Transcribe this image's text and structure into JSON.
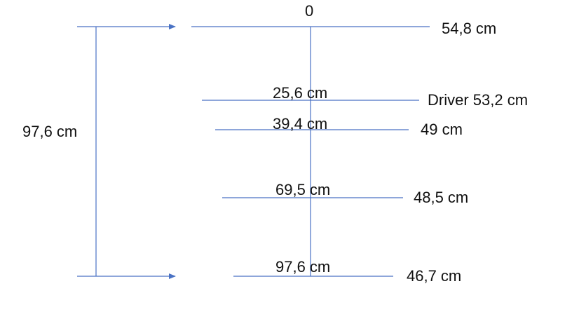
{
  "diagram": {
    "zero_label": "0",
    "total_label": "97,6 cm",
    "line_color": "#4a72c4",
    "text_color": "#111111",
    "levels": [
      {
        "position": "0",
        "width": "54,8 cm"
      },
      {
        "position": "25,6 cm",
        "width": "Driver 53,2 cm"
      },
      {
        "position": "39,4 cm",
        "width": "49 cm"
      },
      {
        "position": "69,5 cm",
        "width": "48,5 cm"
      },
      {
        "position": "97,6 cm",
        "width": "46,7 cm"
      }
    ]
  }
}
